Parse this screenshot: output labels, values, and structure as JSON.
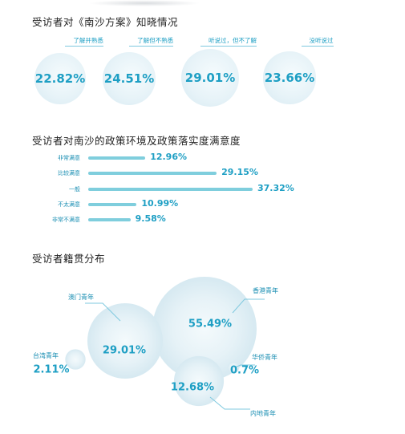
{
  "chart_data": [
    {
      "type": "bubble",
      "title": "受访者对《南沙方案》知晓情况",
      "categories": [
        "了解并熟悉",
        "了解但不熟悉",
        "听说过，但不了解",
        "没听说过"
      ],
      "values": [
        22.82,
        24.51,
        29.01,
        23.66
      ],
      "value_labels": [
        "22.82%",
        "24.51%",
        "29.01%",
        "23.66%"
      ],
      "unit": "%"
    },
    {
      "type": "bar",
      "orientation": "horizontal",
      "title": "受访者对南沙的政策环境及政策落实度满意度",
      "categories": [
        "非常满意",
        "比较满意",
        "一般",
        "不太满意",
        "非常不满意"
      ],
      "values": [
        12.96,
        29.15,
        37.32,
        10.99,
        9.58
      ],
      "value_labels": [
        "12.96%",
        "29.15%",
        "37.32%",
        "10.99%",
        "9.58%"
      ],
      "unit": "%"
    },
    {
      "type": "bubble",
      "title": "受访者籍贯分布",
      "categories": [
        "香港青年",
        "澳门青年",
        "内地青年",
        "台湾青年",
        "华侨青年"
      ],
      "values": [
        55.49,
        29.01,
        12.68,
        2.11,
        0.7
      ],
      "value_labels": [
        "55.49%",
        "29.01%",
        "12.68%",
        "2.11%",
        "0.7%"
      ],
      "unit": "%"
    }
  ],
  "colors": {
    "accent": "#1e9fc4",
    "bar": "#7fcedd",
    "bubble_fill": "#e4f2f7",
    "title": "#222222"
  }
}
